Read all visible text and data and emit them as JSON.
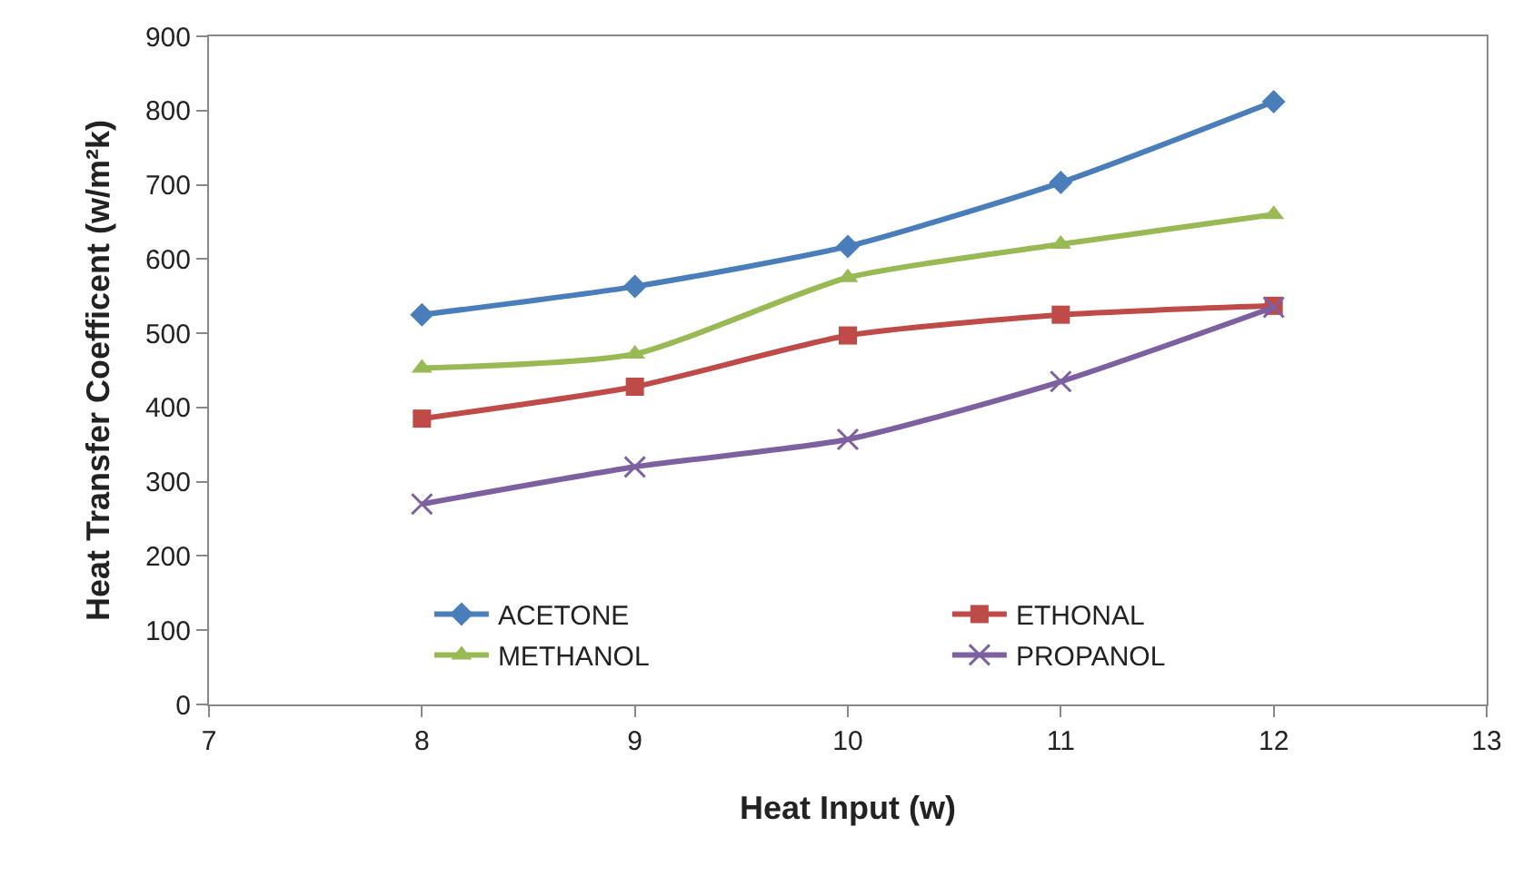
{
  "chart_data": {
    "type": "line",
    "xlabel": "Heat Input (w)",
    "ylabel": "Heat Transfer Coefficent (w/m²k)",
    "x": [
      8,
      9,
      10,
      11,
      12
    ],
    "xlim": [
      7,
      13
    ],
    "xticks": [
      7,
      8,
      9,
      10,
      11,
      12,
      13
    ],
    "ylim": [
      0,
      900
    ],
    "yticks": [
      0,
      100,
      200,
      300,
      400,
      500,
      600,
      700,
      800,
      900
    ],
    "grid": false,
    "legend": "bottom right",
    "series": [
      {
        "name": "ACETONE",
        "color": "#4a7ebb",
        "marker": "diamond",
        "values": [
          525,
          563,
          617,
          703,
          812
        ]
      },
      {
        "name": "ETHONAL",
        "color": "#be4b48",
        "marker": "square",
        "values": [
          385,
          428,
          497,
          525,
          537
        ]
      },
      {
        "name": "METHANOL",
        "color": "#98b954",
        "marker": "triangle",
        "values": [
          453,
          472,
          575,
          620,
          660
        ]
      },
      {
        "name": "PROPANOL",
        "color": "#7d60a0",
        "marker": "cross",
        "values": [
          270,
          320,
          357,
          435,
          535
        ]
      }
    ]
  }
}
